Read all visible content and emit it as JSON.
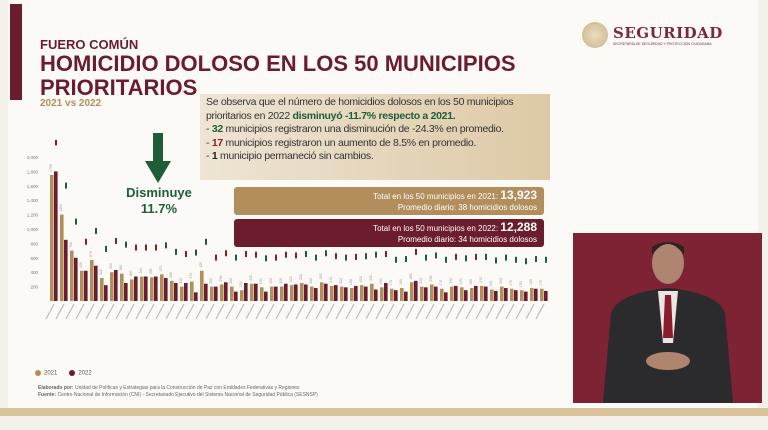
{
  "header": {
    "kicker": "FUERO COMÚN",
    "title": "HOMICIDIO DOLOSO EN LOS 50 MUNICIPIOS PRIORITARIOS",
    "subtitle": "2021 vs 2022"
  },
  "logo": {
    "name": "SEGURIDAD",
    "sub": "SECRETARÍA DE SEGURIDAD Y PROTECCIÓN CIUDADANA"
  },
  "info": {
    "line1": "Se observa que el número de homicidios dolosos en los 50 municipios prioritarios en 2022 ",
    "line1_bold": "disminuyó -11.7% respecto a 2021.",
    "b1_num": "32",
    "b1_text": " municipios registraron una disminución de -24.3% en promedio.",
    "b2_num": "17",
    "b2_text": " municipios registraron un aumento de 8.5% en promedio.",
    "b3_num": "1",
    "b3_text": " municipio permaneció sin cambios."
  },
  "trend": {
    "label": "Disminuye",
    "value": "11.7%",
    "color": "#1f5c3a"
  },
  "totals": [
    {
      "label": "Total en los 50 municipios en 2021: ",
      "value": "13,923",
      "daily": "Promedio diario: 38 homicidios dolosos",
      "color": "#b38e5d"
    },
    {
      "label": "Total en los 50 municipios en 2022: ",
      "value": "12,288",
      "daily": "Promedio diario: 34 homicidios dolosos",
      "color": "#6b1d2e"
    }
  ],
  "legend": [
    {
      "label": "2021",
      "color": "#b38e5d"
    },
    {
      "label": "2022",
      "color": "#6b1d2e"
    }
  ],
  "footer": {
    "made_by_label": "Elaborado por:",
    "made_by": " Unidad de Políticas y Estrategias para la Construcción de Paz con Entidades Federativas y Regiones",
    "source_label": "Fuente:",
    "source": " Centro Nacional de Información (CNI) - Secretariado Ejecutivo del Sistema Nacional de Seguridad Pública (SESNSP)"
  },
  "chart_data": {
    "type": "bar",
    "ylim": [
      0,
      2000
    ],
    "yticks": [
      "200",
      "400",
      "600",
      "800",
      "1,000",
      "1,200",
      "1,400",
      "1,600",
      "1,800",
      "2,000"
    ],
    "series": [
      {
        "name": "2021",
        "color": "#b38e5d",
        "values": [
          1750,
          1200,
          700,
          420,
          570,
          320,
          400,
          380,
          300,
          340,
          330,
          370,
          280,
          200,
          270,
          420,
          200,
          230,
          200,
          150,
          240,
          190,
          200,
          200,
          220,
          250,
          200,
          260,
          210,
          200,
          180,
          220,
          240,
          190,
          170,
          180,
          260,
          200,
          230,
          170,
          200,
          190,
          180,
          210,
          160,
          200,
          170,
          150,
          180,
          170
        ]
      },
      {
        "name": "2022",
        "color": "#6b1d2e",
        "values": [
          1800,
          850,
          600,
          420,
          490,
          220,
          430,
          250,
          340,
          340,
          340,
          320,
          250,
          250,
          120,
          240,
          200,
          260,
          130,
          250,
          240,
          130,
          200,
          240,
          230,
          230,
          180,
          240,
          220,
          190,
          210,
          200,
          160,
          250,
          150,
          130,
          280,
          190,
          200,
          120,
          210,
          150,
          210,
          200,
          140,
          180,
          150,
          130,
          170,
          140
        ]
      }
    ]
  }
}
